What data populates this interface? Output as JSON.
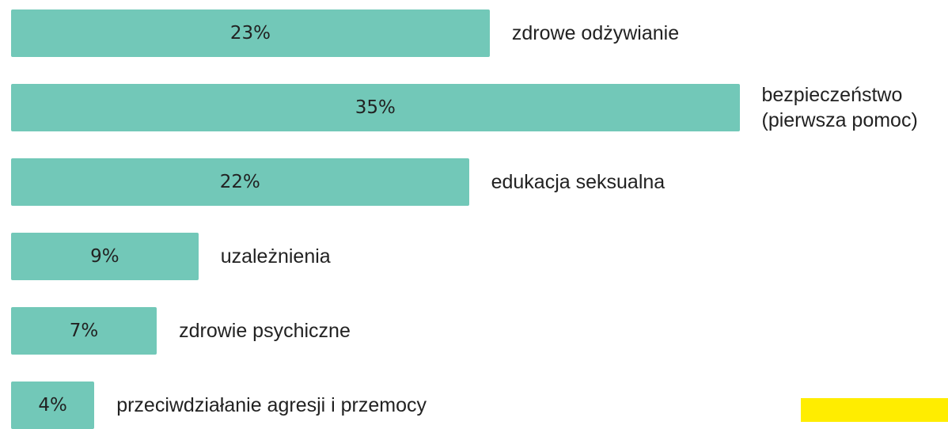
{
  "chart_data": {
    "type": "bar",
    "orientation": "horizontal",
    "categories": [
      "zdrowe odżywianie",
      "bezpieczeństwo\n(pierwsza pomoc)",
      "edukacja seksualna",
      "uzależnienia",
      "zdrowie psychiczne",
      "przeciwdziałanie agresji i przemocy"
    ],
    "values": [
      23,
      35,
      22,
      9,
      7,
      4
    ],
    "value_labels": [
      "23%",
      "35%",
      "22%",
      "9%",
      "7%",
      "4%"
    ],
    "color": "#72c8b8"
  }
}
